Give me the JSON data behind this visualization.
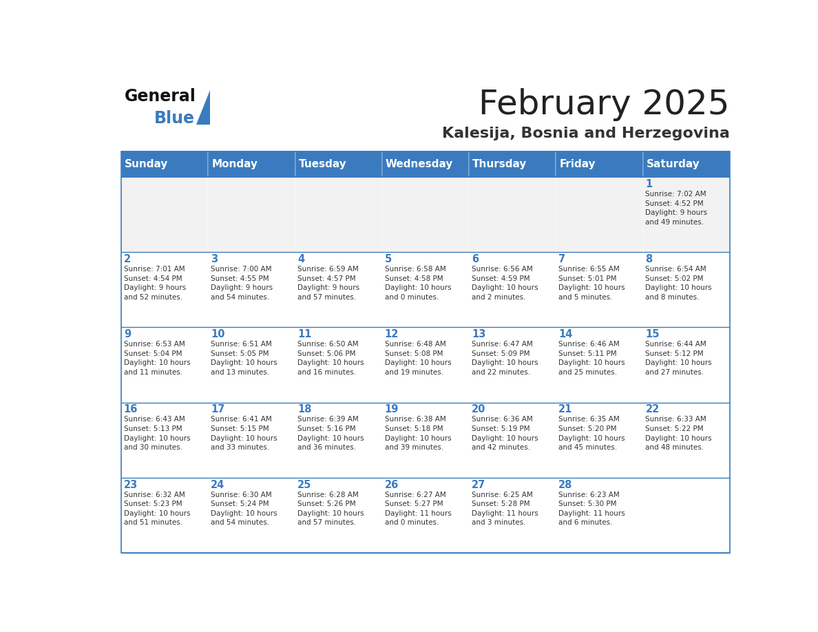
{
  "title": "February 2025",
  "subtitle": "Kalesija, Bosnia and Herzegovina",
  "header_color": "#3a7bbf",
  "header_text_color": "#ffffff",
  "cell_bg_color": "#ffffff",
  "first_row_bg": "#f2f2f2",
  "border_color": "#3a7bbf",
  "day_headers": [
    "Sunday",
    "Monday",
    "Tuesday",
    "Wednesday",
    "Thursday",
    "Friday",
    "Saturday"
  ],
  "title_color": "#222222",
  "subtitle_color": "#333333",
  "day_num_color": "#3a7bbf",
  "cell_text_color": "#333333",
  "logo_black": "#111111",
  "logo_blue": "#3a7bbf",
  "weeks": [
    [
      {
        "day": "",
        "info": ""
      },
      {
        "day": "",
        "info": ""
      },
      {
        "day": "",
        "info": ""
      },
      {
        "day": "",
        "info": ""
      },
      {
        "day": "",
        "info": ""
      },
      {
        "day": "",
        "info": ""
      },
      {
        "day": "1",
        "info": "Sunrise: 7:02 AM\nSunset: 4:52 PM\nDaylight: 9 hours\nand 49 minutes."
      }
    ],
    [
      {
        "day": "2",
        "info": "Sunrise: 7:01 AM\nSunset: 4:54 PM\nDaylight: 9 hours\nand 52 minutes."
      },
      {
        "day": "3",
        "info": "Sunrise: 7:00 AM\nSunset: 4:55 PM\nDaylight: 9 hours\nand 54 minutes."
      },
      {
        "day": "4",
        "info": "Sunrise: 6:59 AM\nSunset: 4:57 PM\nDaylight: 9 hours\nand 57 minutes."
      },
      {
        "day": "5",
        "info": "Sunrise: 6:58 AM\nSunset: 4:58 PM\nDaylight: 10 hours\nand 0 minutes."
      },
      {
        "day": "6",
        "info": "Sunrise: 6:56 AM\nSunset: 4:59 PM\nDaylight: 10 hours\nand 2 minutes."
      },
      {
        "day": "7",
        "info": "Sunrise: 6:55 AM\nSunset: 5:01 PM\nDaylight: 10 hours\nand 5 minutes."
      },
      {
        "day": "8",
        "info": "Sunrise: 6:54 AM\nSunset: 5:02 PM\nDaylight: 10 hours\nand 8 minutes."
      }
    ],
    [
      {
        "day": "9",
        "info": "Sunrise: 6:53 AM\nSunset: 5:04 PM\nDaylight: 10 hours\nand 11 minutes."
      },
      {
        "day": "10",
        "info": "Sunrise: 6:51 AM\nSunset: 5:05 PM\nDaylight: 10 hours\nand 13 minutes."
      },
      {
        "day": "11",
        "info": "Sunrise: 6:50 AM\nSunset: 5:06 PM\nDaylight: 10 hours\nand 16 minutes."
      },
      {
        "day": "12",
        "info": "Sunrise: 6:48 AM\nSunset: 5:08 PM\nDaylight: 10 hours\nand 19 minutes."
      },
      {
        "day": "13",
        "info": "Sunrise: 6:47 AM\nSunset: 5:09 PM\nDaylight: 10 hours\nand 22 minutes."
      },
      {
        "day": "14",
        "info": "Sunrise: 6:46 AM\nSunset: 5:11 PM\nDaylight: 10 hours\nand 25 minutes."
      },
      {
        "day": "15",
        "info": "Sunrise: 6:44 AM\nSunset: 5:12 PM\nDaylight: 10 hours\nand 27 minutes."
      }
    ],
    [
      {
        "day": "16",
        "info": "Sunrise: 6:43 AM\nSunset: 5:13 PM\nDaylight: 10 hours\nand 30 minutes."
      },
      {
        "day": "17",
        "info": "Sunrise: 6:41 AM\nSunset: 5:15 PM\nDaylight: 10 hours\nand 33 minutes."
      },
      {
        "day": "18",
        "info": "Sunrise: 6:39 AM\nSunset: 5:16 PM\nDaylight: 10 hours\nand 36 minutes."
      },
      {
        "day": "19",
        "info": "Sunrise: 6:38 AM\nSunset: 5:18 PM\nDaylight: 10 hours\nand 39 minutes."
      },
      {
        "day": "20",
        "info": "Sunrise: 6:36 AM\nSunset: 5:19 PM\nDaylight: 10 hours\nand 42 minutes."
      },
      {
        "day": "21",
        "info": "Sunrise: 6:35 AM\nSunset: 5:20 PM\nDaylight: 10 hours\nand 45 minutes."
      },
      {
        "day": "22",
        "info": "Sunrise: 6:33 AM\nSunset: 5:22 PM\nDaylight: 10 hours\nand 48 minutes."
      }
    ],
    [
      {
        "day": "23",
        "info": "Sunrise: 6:32 AM\nSunset: 5:23 PM\nDaylight: 10 hours\nand 51 minutes."
      },
      {
        "day": "24",
        "info": "Sunrise: 6:30 AM\nSunset: 5:24 PM\nDaylight: 10 hours\nand 54 minutes."
      },
      {
        "day": "25",
        "info": "Sunrise: 6:28 AM\nSunset: 5:26 PM\nDaylight: 10 hours\nand 57 minutes."
      },
      {
        "day": "26",
        "info": "Sunrise: 6:27 AM\nSunset: 5:27 PM\nDaylight: 11 hours\nand 0 minutes."
      },
      {
        "day": "27",
        "info": "Sunrise: 6:25 AM\nSunset: 5:28 PM\nDaylight: 11 hours\nand 3 minutes."
      },
      {
        "day": "28",
        "info": "Sunrise: 6:23 AM\nSunset: 5:30 PM\nDaylight: 11 hours\nand 6 minutes."
      },
      {
        "day": "",
        "info": ""
      }
    ]
  ]
}
